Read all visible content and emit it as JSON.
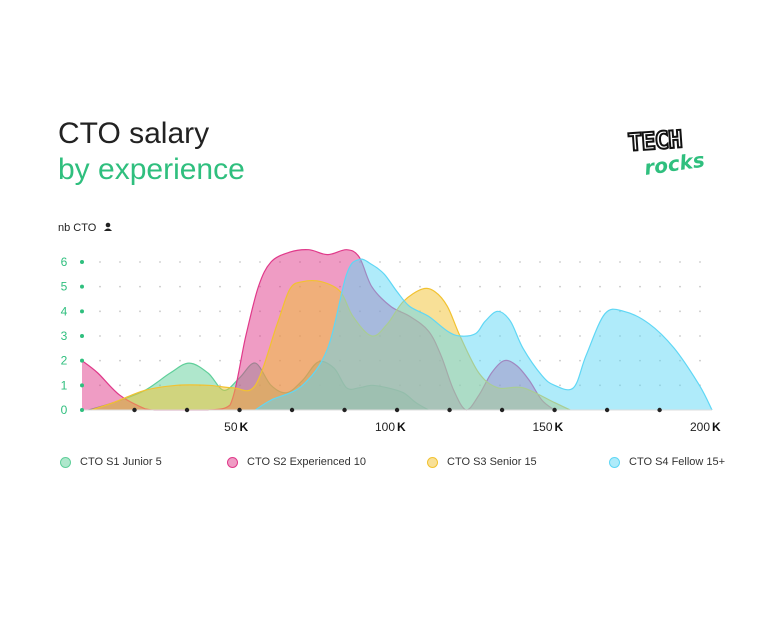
{
  "header": {
    "title": "CTO salary",
    "subtitle": "by experience",
    "logo_text_top": "TECH",
    "logo_text_bottom": "rocks"
  },
  "colors": {
    "title": "#222222",
    "accent": "#2fbf7e",
    "s1": "#5fcf9a",
    "s2": "#e0398a",
    "s3": "#f2c230",
    "s4": "#5fd7f5"
  },
  "chart_data": {
    "type": "area",
    "title": "CTO salary by experience",
    "ylabel": "nb CTO",
    "x_unit": "K",
    "xlim": [
      0,
      200
    ],
    "ylim": [
      0,
      6
    ],
    "x_ticks": [
      50,
      100,
      150,
      200
    ],
    "y_ticks": [
      0,
      1,
      2,
      3,
      4,
      5,
      6
    ],
    "grid": "dotted",
    "legend_position": "bottom",
    "series": [
      {
        "name": "CTO S1 Junior 5",
        "color": "#5fcf9a",
        "x": [
          2,
          10,
          20,
          28,
          34,
          40,
          45,
          50,
          55,
          60,
          65,
          70,
          75,
          80,
          84,
          88,
          92,
          97,
          102,
          106,
          110
        ],
        "y": [
          0,
          0.3,
          0.8,
          1.5,
          1.9,
          1.5,
          0.8,
          1.3,
          1.9,
          1.0,
          0.7,
          1.2,
          1.95,
          1.7,
          0.9,
          0.9,
          1.0,
          0.9,
          0.7,
          0.3,
          0
        ]
      },
      {
        "name": "CTO S2 Experienced 10",
        "color": "#e0398a",
        "x": [
          0,
          5,
          12,
          20,
          23,
          26,
          40,
          47,
          52,
          56,
          60,
          66,
          72,
          78,
          84,
          88,
          92,
          98,
          104,
          110,
          114,
          118,
          122,
          126,
          130,
          134,
          138,
          142,
          146,
          150
        ],
        "y": [
          2,
          1.5,
          0.6,
          0.05,
          0,
          0,
          0,
          0.2,
          3.0,
          5.0,
          6.0,
          6.4,
          6.5,
          6.3,
          6.5,
          6.2,
          5.0,
          4.2,
          3.8,
          3.2,
          2.2,
          0.8,
          0,
          0.6,
          1.5,
          2.0,
          1.8,
          1.2,
          0.4,
          0
        ]
      },
      {
        "name": "CTO S3 Senior 15",
        "color": "#f2c230",
        "x": [
          3,
          10,
          20,
          30,
          40,
          48,
          55,
          62,
          66,
          70,
          76,
          82,
          86,
          92,
          97,
          102,
          108,
          112,
          116,
          120,
          126,
          132,
          140,
          150,
          155
        ],
        "y": [
          0,
          0.3,
          0.8,
          1.0,
          1.0,
          0.9,
          1.0,
          3.5,
          4.9,
          5.2,
          5.2,
          4.8,
          3.8,
          3.0,
          3.5,
          4.4,
          4.9,
          4.8,
          4.2,
          3.0,
          1.5,
          0.9,
          0.9,
          0.3,
          0
        ]
      },
      {
        "name": "CTO S4 Fellow 15+",
        "color": "#5fd7f5",
        "x": [
          55,
          60,
          70,
          78,
          84,
          88,
          92,
          96,
          100,
          104,
          110,
          116,
          120,
          125,
          128,
          132,
          136,
          140,
          146,
          150,
          156,
          160,
          166,
          172,
          180,
          188,
          196,
          200
        ],
        "y": [
          0,
          0.4,
          1.0,
          2.5,
          5.5,
          6.1,
          5.9,
          5.5,
          4.8,
          4.2,
          3.8,
          3.2,
          3.0,
          3.1,
          3.6,
          4.0,
          3.6,
          2.5,
          1.4,
          1.0,
          0.9,
          2.2,
          3.9,
          4.0,
          3.5,
          2.5,
          1.0,
          0
        ]
      }
    ]
  }
}
